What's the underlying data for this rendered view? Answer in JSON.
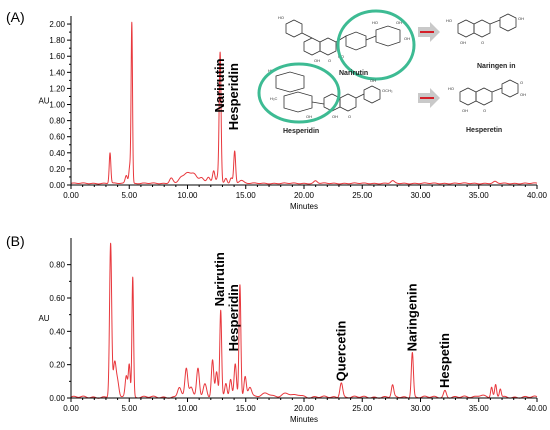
{
  "chart_data": [
    {
      "type": "line",
      "panel_label": "(A)",
      "xlabel": "Minutes",
      "ylabel": "AU",
      "xlim": [
        0,
        40
      ],
      "ylim": [
        0,
        2.1
      ],
      "xticks": [
        "0.00",
        "5.00",
        "10.00",
        "15.00",
        "20.00",
        "25.00",
        "30.00",
        "35.00",
        "40.00"
      ],
      "xtick_values": [
        0,
        5,
        10,
        15,
        20,
        25,
        30,
        35,
        40
      ],
      "yticks": [
        "0.00",
        "0.20",
        "0.40",
        "0.60",
        "0.80",
        "1.00",
        "1.20",
        "1.40",
        "1.60",
        "1.80",
        "2.00"
      ],
      "ytick_values": [
        0,
        0.2,
        0.4,
        0.6,
        0.8,
        1.0,
        1.2,
        1.4,
        1.6,
        1.8,
        2.0
      ],
      "baseline": 0.02,
      "peaks": [
        {
          "x": 3.35,
          "h": 0.38,
          "w": 0.07
        },
        {
          "x": 4.75,
          "h": 0.1,
          "w": 0.1
        },
        {
          "x": 5.05,
          "h": 0.22,
          "w": 0.08
        },
        {
          "x": 5.22,
          "h": 1.98,
          "w": 0.06
        },
        {
          "x": 8.6,
          "h": 0.07,
          "w": 0.15
        },
        {
          "x": 9.4,
          "h": 0.06,
          "w": 0.2
        },
        {
          "x": 10.0,
          "h": 0.13,
          "w": 0.3
        },
        {
          "x": 10.6,
          "h": 0.1,
          "w": 0.25
        },
        {
          "x": 11.2,
          "h": 0.07,
          "w": 0.2
        },
        {
          "x": 11.8,
          "h": 0.08,
          "w": 0.15
        },
        {
          "x": 12.25,
          "h": 0.15,
          "w": 0.1
        },
        {
          "x": 12.6,
          "h": 0.08,
          "w": 0.1
        },
        {
          "x": 12.8,
          "h": 1.62,
          "w": 0.08
        },
        {
          "x": 13.3,
          "h": 0.06,
          "w": 0.1
        },
        {
          "x": 13.75,
          "h": 0.07,
          "w": 0.1
        },
        {
          "x": 14.05,
          "h": 0.4,
          "w": 0.08
        },
        {
          "x": 14.6,
          "h": 0.04,
          "w": 0.2
        },
        {
          "x": 21.0,
          "h": 0.03,
          "w": 0.15
        },
        {
          "x": 27.6,
          "h": 0.03,
          "w": 0.15
        },
        {
          "x": 36.4,
          "h": 0.02,
          "w": 0.15
        }
      ],
      "annotations": [
        {
          "text": "Narirutin",
          "x": 12.8,
          "ytext": 0.9
        },
        {
          "text": "Hesperidin",
          "x": 14.0,
          "ytext": 0.68
        }
      ],
      "structures": {
        "labels": [
          "Narirutin",
          "Hesperidin",
          "Naringen in",
          "Hesperetin"
        ]
      }
    },
    {
      "type": "line",
      "panel_label": "(B)",
      "xlabel": "Minutes",
      "ylabel": "AU",
      "xlim": [
        0,
        40
      ],
      "ylim": [
        0,
        0.96
      ],
      "xticks": [
        "0.00",
        "5.00",
        "10.00",
        "15.00",
        "20.00",
        "25.00",
        "30.00",
        "35.00",
        "40.00"
      ],
      "xtick_values": [
        0,
        5,
        10,
        15,
        20,
        25,
        30,
        35,
        40
      ],
      "yticks": [
        "0.00",
        "0.20",
        "0.40",
        "0.60",
        "0.80"
      ],
      "ytick_values": [
        0,
        0.2,
        0.4,
        0.6,
        0.8
      ],
      "baseline": 0.005,
      "peaks": [
        {
          "x": 3.4,
          "h": 0.92,
          "w": 0.09
        },
        {
          "x": 3.75,
          "h": 0.2,
          "w": 0.12
        },
        {
          "x": 4.0,
          "h": 0.09,
          "w": 0.12
        },
        {
          "x": 4.75,
          "h": 0.13,
          "w": 0.1
        },
        {
          "x": 5.0,
          "h": 0.2,
          "w": 0.08
        },
        {
          "x": 5.3,
          "h": 0.72,
          "w": 0.07
        },
        {
          "x": 9.3,
          "h": 0.06,
          "w": 0.15
        },
        {
          "x": 9.9,
          "h": 0.17,
          "w": 0.12
        },
        {
          "x": 10.3,
          "h": 0.06,
          "w": 0.15
        },
        {
          "x": 10.9,
          "h": 0.18,
          "w": 0.12
        },
        {
          "x": 11.5,
          "h": 0.08,
          "w": 0.15
        },
        {
          "x": 12.15,
          "h": 0.22,
          "w": 0.1
        },
        {
          "x": 12.5,
          "h": 0.15,
          "w": 0.1
        },
        {
          "x": 12.85,
          "h": 0.52,
          "w": 0.08
        },
        {
          "x": 13.3,
          "h": 0.08,
          "w": 0.1
        },
        {
          "x": 13.7,
          "h": 0.11,
          "w": 0.1
        },
        {
          "x": 14.1,
          "h": 0.2,
          "w": 0.1
        },
        {
          "x": 14.5,
          "h": 0.68,
          "w": 0.08
        },
        {
          "x": 14.95,
          "h": 0.12,
          "w": 0.1
        },
        {
          "x": 15.35,
          "h": 0.06,
          "w": 0.15
        },
        {
          "x": 16.8,
          "h": 0.025,
          "w": 0.4
        },
        {
          "x": 18.5,
          "h": 0.02,
          "w": 0.4
        },
        {
          "x": 19.6,
          "h": 0.015,
          "w": 0.3
        },
        {
          "x": 23.2,
          "h": 0.09,
          "w": 0.12
        },
        {
          "x": 27.6,
          "h": 0.07,
          "w": 0.1
        },
        {
          "x": 29.3,
          "h": 0.27,
          "w": 0.09
        },
        {
          "x": 32.1,
          "h": 0.04,
          "w": 0.12
        },
        {
          "x": 35.2,
          "h": 0.015,
          "w": 0.3
        },
        {
          "x": 36.1,
          "h": 0.06,
          "w": 0.08
        },
        {
          "x": 36.45,
          "h": 0.07,
          "w": 0.08
        },
        {
          "x": 36.85,
          "h": 0.05,
          "w": 0.08
        }
      ],
      "annotations": [
        {
          "text": "Narirutin",
          "x": 12.8,
          "ytext": 0.55
        },
        {
          "text": "Hesperidin",
          "x": 14.0,
          "ytext": 0.28
        },
        {
          "text": "Quercetin",
          "x": 23.2,
          "ytext": 0.1
        },
        {
          "text": "Naringenin",
          "x": 29.3,
          "ytext": 0.28
        },
        {
          "text": "Hespetin",
          "x": 32.1,
          "ytext": 0.06
        }
      ]
    }
  ]
}
